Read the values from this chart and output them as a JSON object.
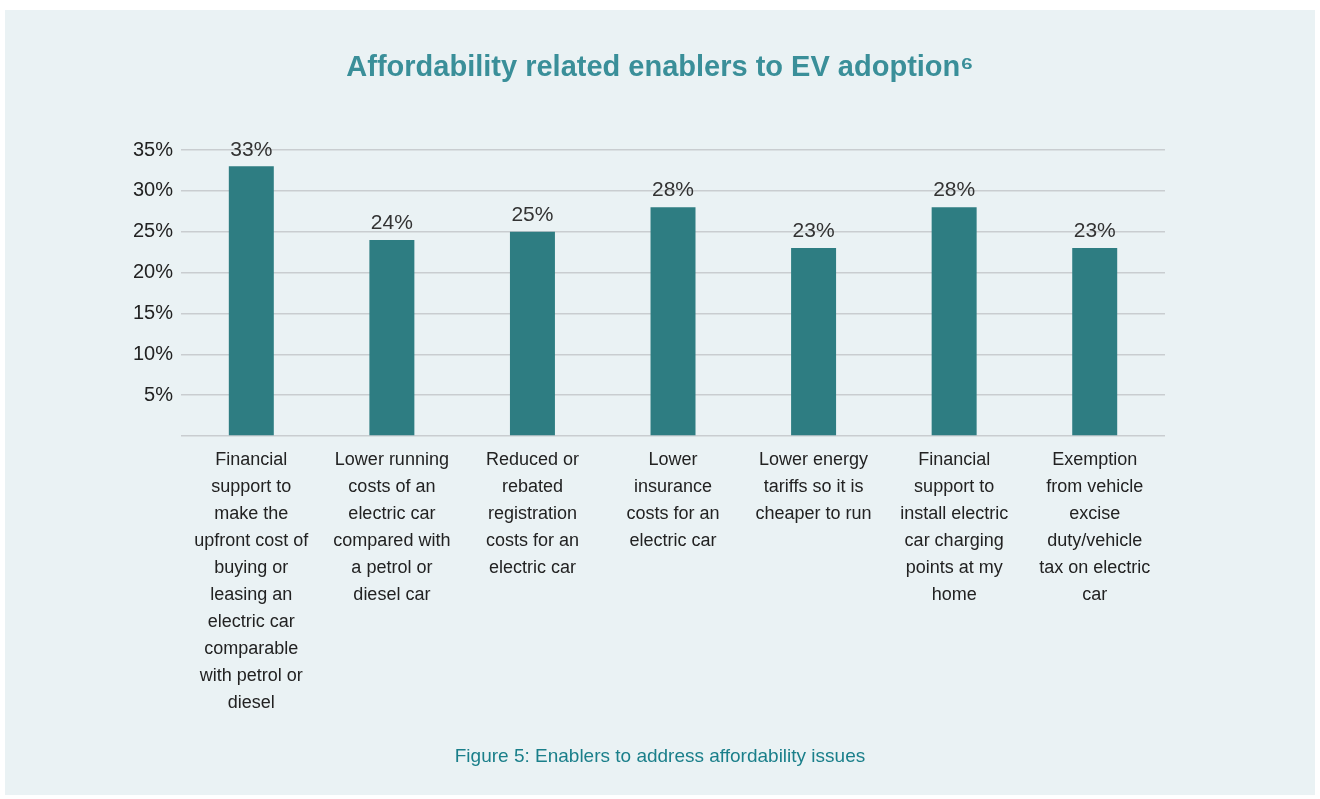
{
  "chart_data": {
    "type": "bar",
    "title": "Affordability related enablers to EV adoption⁶",
    "categories": [
      "Financial support to make the upfront cost of buying or leasing an electric car comparable with petrol or diesel",
      "Lower running costs of an electric car compared with a petrol or diesel car",
      "Reduced or rebated registration costs for an electric car",
      "Lower insurance costs for an electric car",
      "Lower energy tariffs so it is cheaper to run",
      "Financial support to install electric car charging points at my home",
      "Exemption from vehicle excise duty/vehicle tax on electric car"
    ],
    "values": [
      33,
      24,
      25,
      28,
      23,
      28,
      23
    ],
    "value_labels": [
      "33%",
      "24%",
      "25%",
      "28%",
      "23%",
      "28%",
      "23%"
    ],
    "color": "#2e7d82",
    "ylim": [
      0,
      35
    ],
    "yticks": [
      {
        "value": 0,
        "label": null
      },
      {
        "value": 5,
        "label": "5%"
      },
      {
        "value": 10,
        "label": "10%"
      },
      {
        "value": 15,
        "label": "15%"
      },
      {
        "value": 20,
        "label": "20%"
      },
      {
        "value": 25,
        "label": "25%"
      },
      {
        "value": 30,
        "label": "30%"
      },
      {
        "value": 35,
        "label": "35%"
      }
    ],
    "grid": "y",
    "legend": false,
    "annotations": [
      "Figure 5: Enablers to address affordability issues"
    ]
  }
}
